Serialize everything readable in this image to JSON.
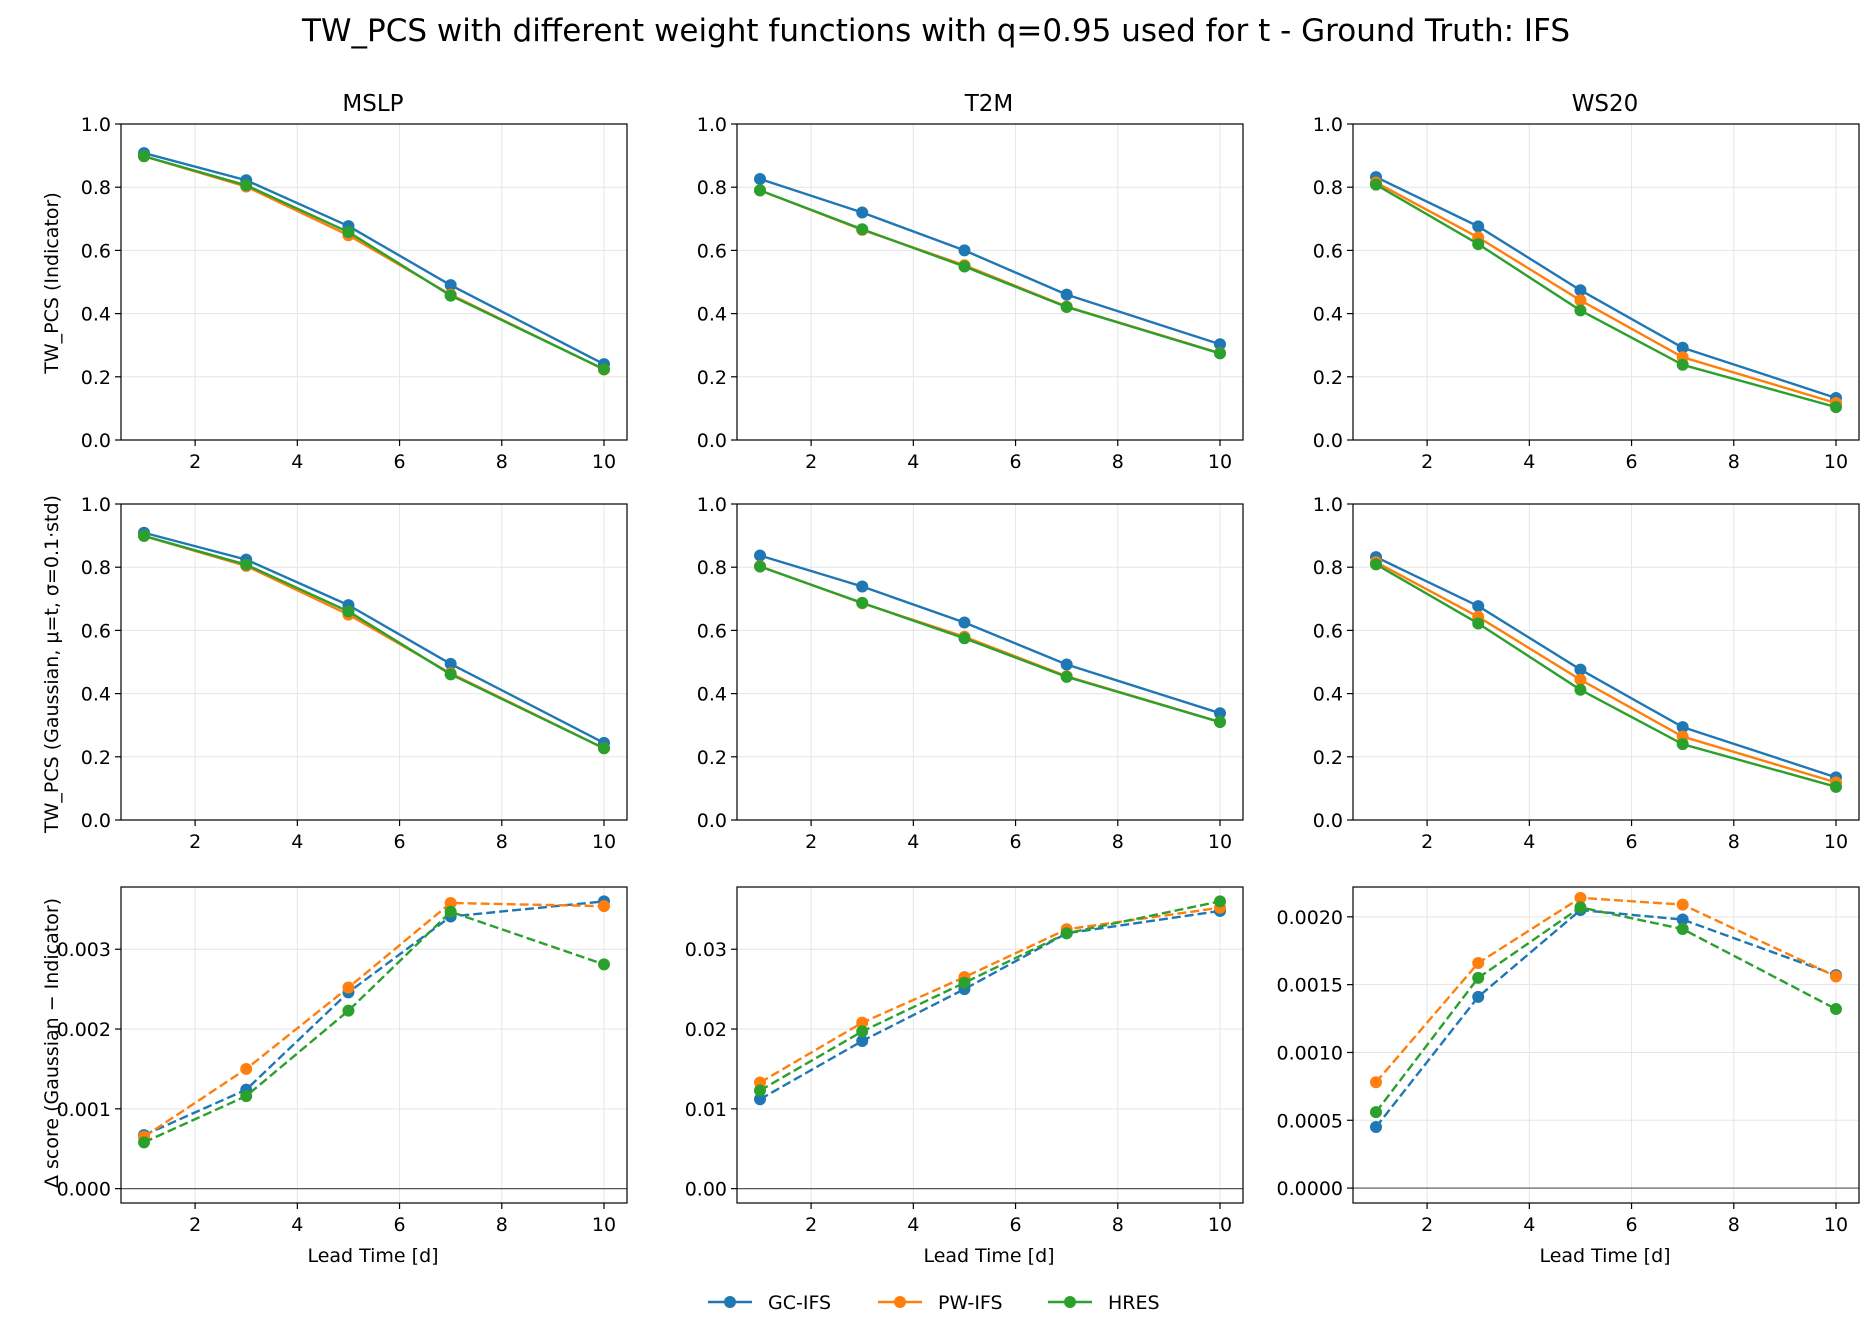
{
  "title": "TW_PCS with different weight functions with q=0.95 used for t - Ground Truth: IFS",
  "columns": [
    "MSLP",
    "T2M",
    "WS20"
  ],
  "row_ylabels": [
    "TW_PCS (Indicator)",
    "TW_PCS (Gaussian, μ=t, σ=0.1·std)",
    "Δ score (Gaussian − Indicator)"
  ],
  "xlabel": "Lead Time [d]",
  "legend": [
    {
      "name": "GC-IFS",
      "color": "#1f77b4"
    },
    {
      "name": "PW-IFS",
      "color": "#ff7f0e"
    },
    {
      "name": "HRES",
      "color": "#2ca02c"
    }
  ],
  "chart_data": [
    {
      "type": "line",
      "column": "MSLP",
      "row": "Indicator",
      "x": [
        1,
        3,
        5,
        7,
        10
      ],
      "xlim": [
        0.55,
        10.45
      ],
      "xticks": [
        2,
        4,
        6,
        8,
        10
      ],
      "ylim": [
        0,
        1
      ],
      "yticks": [
        "0.0",
        "0.2",
        "0.4",
        "0.6",
        "0.8",
        "1.0"
      ],
      "grid": true,
      "line_style": "solid",
      "series": [
        {
          "name": "GC-IFS",
          "values": [
            0.908,
            0.822,
            0.677,
            0.49,
            0.24
          ]
        },
        {
          "name": "PW-IFS",
          "values": [
            0.898,
            0.802,
            0.648,
            0.46,
            0.223
          ]
        },
        {
          "name": "HRES",
          "values": [
            0.898,
            0.806,
            0.658,
            0.457,
            0.224
          ]
        }
      ]
    },
    {
      "type": "line",
      "column": "T2M",
      "row": "Indicator",
      "x": [
        1,
        3,
        5,
        7,
        10
      ],
      "xlim": [
        0.55,
        10.45
      ],
      "xticks": [
        2,
        4,
        6,
        8,
        10
      ],
      "ylim": [
        0,
        1
      ],
      "yticks": [
        "0.0",
        "0.2",
        "0.4",
        "0.6",
        "0.8",
        "1.0"
      ],
      "grid": true,
      "line_style": "solid",
      "series": [
        {
          "name": "GC-IFS",
          "values": [
            0.826,
            0.72,
            0.6,
            0.46,
            0.303
          ]
        },
        {
          "name": "PW-IFS",
          "values": [
            0.79,
            0.665,
            0.553,
            0.422,
            0.275
          ]
        },
        {
          "name": "HRES",
          "values": [
            0.79,
            0.667,
            0.549,
            0.421,
            0.274
          ]
        }
      ]
    },
    {
      "type": "line",
      "column": "WS20",
      "row": "Indicator",
      "x": [
        1,
        3,
        5,
        7,
        10
      ],
      "xlim": [
        0.55,
        10.45
      ],
      "xticks": [
        2,
        4,
        6,
        8,
        10
      ],
      "ylim": [
        0,
        1
      ],
      "yticks": [
        "0.0",
        "0.2",
        "0.4",
        "0.6",
        "0.8",
        "1.0"
      ],
      "grid": true,
      "line_style": "solid",
      "series": [
        {
          "name": "GC-IFS",
          "values": [
            0.832,
            0.676,
            0.474,
            0.292,
            0.133
          ]
        },
        {
          "name": "PW-IFS",
          "values": [
            0.815,
            0.641,
            0.442,
            0.262,
            0.117
          ]
        },
        {
          "name": "HRES",
          "values": [
            0.808,
            0.62,
            0.41,
            0.238,
            0.104
          ]
        }
      ]
    },
    {
      "type": "line",
      "column": "MSLP",
      "row": "Gaussian",
      "x": [
        1,
        3,
        5,
        7,
        10
      ],
      "xlim": [
        0.55,
        10.45
      ],
      "xticks": [
        2,
        4,
        6,
        8,
        10
      ],
      "ylim": [
        0,
        1
      ],
      "yticks": [
        "0.0",
        "0.2",
        "0.4",
        "0.6",
        "0.8",
        "1.0"
      ],
      "grid": true,
      "line_style": "solid",
      "series": [
        {
          "name": "GC-IFS",
          "values": [
            0.909,
            0.824,
            0.68,
            0.494,
            0.244
          ]
        },
        {
          "name": "PW-IFS",
          "values": [
            0.899,
            0.804,
            0.65,
            0.464,
            0.227
          ]
        },
        {
          "name": "HRES",
          "values": [
            0.899,
            0.808,
            0.66,
            0.461,
            0.227
          ]
        }
      ]
    },
    {
      "type": "line",
      "column": "T2M",
      "row": "Gaussian",
      "x": [
        1,
        3,
        5,
        7,
        10
      ],
      "xlim": [
        0.55,
        10.45
      ],
      "xticks": [
        2,
        4,
        6,
        8,
        10
      ],
      "ylim": [
        0,
        1
      ],
      "yticks": [
        "0.0",
        "0.2",
        "0.4",
        "0.6",
        "0.8",
        "1.0"
      ],
      "grid": true,
      "line_style": "solid",
      "series": [
        {
          "name": "GC-IFS",
          "values": [
            0.837,
            0.739,
            0.625,
            0.492,
            0.338
          ]
        },
        {
          "name": "PW-IFS",
          "values": [
            0.803,
            0.686,
            0.58,
            0.455,
            0.31
          ]
        },
        {
          "name": "HRES",
          "values": [
            0.802,
            0.687,
            0.575,
            0.453,
            0.31
          ]
        }
      ]
    },
    {
      "type": "line",
      "column": "WS20",
      "row": "Gaussian",
      "x": [
        1,
        3,
        5,
        7,
        10
      ],
      "xlim": [
        0.55,
        10.45
      ],
      "xticks": [
        2,
        4,
        6,
        8,
        10
      ],
      "ylim": [
        0,
        1
      ],
      "yticks": [
        "0.0",
        "0.2",
        "0.4",
        "0.6",
        "0.8",
        "1.0"
      ],
      "grid": true,
      "line_style": "solid",
      "series": [
        {
          "name": "GC-IFS",
          "values": [
            0.832,
            0.677,
            0.476,
            0.294,
            0.135
          ]
        },
        {
          "name": "PW-IFS",
          "values": [
            0.816,
            0.643,
            0.444,
            0.264,
            0.119
          ]
        },
        {
          "name": "HRES",
          "values": [
            0.809,
            0.622,
            0.412,
            0.24,
            0.105
          ]
        }
      ]
    },
    {
      "type": "line",
      "column": "MSLP",
      "row": "Delta",
      "x": [
        1,
        3,
        5,
        7,
        10
      ],
      "xlim": [
        0.55,
        10.45
      ],
      "xticks": [
        2,
        4,
        6,
        8,
        10
      ],
      "ylim": [
        -0.00018,
        0.00378
      ],
      "yticks": [
        "0.000",
        "0.001",
        "0.002",
        "0.003"
      ],
      "zero_line": true,
      "grid": true,
      "line_style": "dashed",
      "series": [
        {
          "name": "GC-IFS",
          "values": [
            0.00067,
            0.00124,
            0.00246,
            0.00341,
            0.0036
          ]
        },
        {
          "name": "PW-IFS",
          "values": [
            0.00065,
            0.0015,
            0.00252,
            0.00358,
            0.00354
          ]
        },
        {
          "name": "HRES",
          "values": [
            0.00058,
            0.00116,
            0.00223,
            0.00347,
            0.00281
          ]
        }
      ]
    },
    {
      "type": "line",
      "column": "T2M",
      "row": "Delta",
      "x": [
        1,
        3,
        5,
        7,
        10
      ],
      "xlim": [
        0.55,
        10.45
      ],
      "xticks": [
        2,
        4,
        6,
        8,
        10
      ],
      "ylim": [
        -0.0018,
        0.0378
      ],
      "yticks": [
        "0.00",
        "0.01",
        "0.02",
        "0.03"
      ],
      "zero_line": true,
      "grid": true,
      "line_style": "dashed",
      "series": [
        {
          "name": "GC-IFS",
          "values": [
            0.0112,
            0.0185,
            0.025,
            0.032,
            0.0348
          ]
        },
        {
          "name": "PW-IFS",
          "values": [
            0.0133,
            0.0208,
            0.0265,
            0.0325,
            0.0352
          ]
        },
        {
          "name": "HRES",
          "values": [
            0.0123,
            0.0197,
            0.0258,
            0.032,
            0.036
          ]
        }
      ]
    },
    {
      "type": "line",
      "column": "WS20",
      "row": "Delta",
      "x": [
        1,
        3,
        5,
        7,
        10
      ],
      "xlim": [
        0.55,
        10.45
      ],
      "xticks": [
        2,
        4,
        6,
        8,
        10
      ],
      "ylim": [
        -0.00011,
        0.00222
      ],
      "yticks": [
        "0.0000",
        "0.0005",
        "0.0010",
        "0.0015",
        "0.0020"
      ],
      "zero_line": true,
      "grid": true,
      "line_style": "dashed",
      "series": [
        {
          "name": "GC-IFS",
          "values": [
            0.00045,
            0.00141,
            0.00205,
            0.00198,
            0.00157
          ]
        },
        {
          "name": "PW-IFS",
          "values": [
            0.00078,
            0.00166,
            0.00214,
            0.00209,
            0.00156
          ]
        },
        {
          "name": "HRES",
          "values": [
            0.00056,
            0.00155,
            0.00207,
            0.00191,
            0.00132
          ]
        }
      ]
    }
  ]
}
